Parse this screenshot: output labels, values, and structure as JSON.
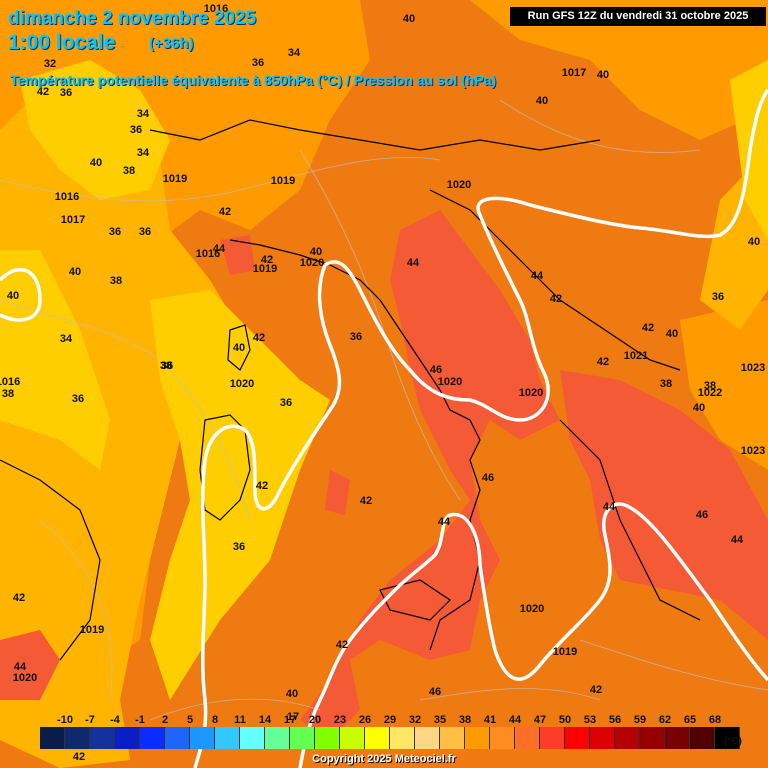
{
  "header": {
    "date": "dimanche 2 novembre 2025",
    "local_time": "1:00 locale",
    "lead": "(+36h)",
    "subtitle": "Température potentielle équivalente à 850hPa (°C) / Pression au sol (hPa)",
    "run": "Run GFS 12Z du vendredi 31 octobre 2025"
  },
  "colors": {
    "t36": "#ffce00",
    "t38": "#ffb400",
    "t41": "#ff9a00",
    "t44": "#f07a12",
    "t47": "#f35a35",
    "isobar": "#ffffff",
    "coast": "#000000"
  },
  "legend": {
    "unit": "(°C)",
    "ticks": [
      "-10",
      "-7",
      "-4",
      "-1",
      "2",
      "5",
      "8",
      "11",
      "14",
      "17",
      "20",
      "23",
      "26",
      "29",
      "32",
      "35",
      "38",
      "41",
      "44",
      "47",
      "50",
      "53",
      "56",
      "59",
      "62",
      "65",
      "68"
    ],
    "colors": [
      "#0a1d4a",
      "#0e2a6e",
      "#13329c",
      "#0a1ec8",
      "#0a2dff",
      "#1e64ff",
      "#1e96ff",
      "#32c8ff",
      "#64ffff",
      "#64ff96",
      "#64ff50",
      "#82ff00",
      "#c8ff00",
      "#ffff00",
      "#ffe664",
      "#ffd782",
      "#ffbe46",
      "#ff9a00",
      "#ff8c1e",
      "#ff6e28",
      "#ff3c28",
      "#ff0000",
      "#dc0000",
      "#b40000",
      "#960000",
      "#780000",
      "#500000",
      "#000000"
    ]
  },
  "labels": [
    {
      "t": "1016"
    },
    {
      "t": "40"
    },
    {
      "t": "32"
    },
    {
      "t": "36"
    },
    {
      "t": "34"
    },
    {
      "t": "36"
    },
    {
      "t": "42"
    },
    {
      "t": "40"
    },
    {
      "t": "1017"
    },
    {
      "t": "40"
    },
    {
      "t": "34"
    },
    {
      "t": "36"
    },
    {
      "t": "34"
    },
    {
      "t": "40"
    },
    {
      "t": "38"
    },
    {
      "t": "1019"
    },
    {
      "t": "1019"
    },
    {
      "t": "1020"
    },
    {
      "t": "1016"
    },
    {
      "t": "1017"
    },
    {
      "t": "36"
    },
    {
      "t": "36"
    },
    {
      "t": "42"
    },
    {
      "t": "44"
    },
    {
      "t": "1016"
    },
    {
      "t": "42"
    },
    {
      "t": "1019"
    },
    {
      "t": "1020"
    },
    {
      "t": "40"
    },
    {
      "t": "44"
    },
    {
      "t": "40"
    },
    {
      "t": "38"
    },
    {
      "t": "40"
    },
    {
      "t": "44"
    },
    {
      "t": "42"
    },
    {
      "t": "34"
    },
    {
      "t": "42"
    },
    {
      "t": "40"
    },
    {
      "t": "36"
    },
    {
      "t": "1021"
    },
    {
      "t": "1016"
    },
    {
      "t": "38"
    },
    {
      "t": "1020"
    },
    {
      "t": "36"
    },
    {
      "t": "36"
    },
    {
      "t": "46"
    },
    {
      "t": "1020"
    },
    {
      "t": "1020"
    },
    {
      "t": "38"
    },
    {
      "t": "38"
    },
    {
      "t": "1022"
    },
    {
      "t": "40"
    },
    {
      "t": "36"
    },
    {
      "t": "1023"
    },
    {
      "t": "42"
    },
    {
      "t": "42"
    },
    {
      "t": "46"
    },
    {
      "t": "42"
    },
    {
      "t": "44"
    },
    {
      "t": "44"
    },
    {
      "t": "46"
    },
    {
      "t": "44"
    },
    {
      "t": "36"
    },
    {
      "t": "42"
    },
    {
      "t": "1019"
    },
    {
      "t": "1020"
    },
    {
      "t": "42"
    },
    {
      "t": "1019"
    },
    {
      "t": "44"
    },
    {
      "t": "1020"
    },
    {
      "t": "46"
    },
    {
      "t": "42"
    },
    {
      "t": "40"
    },
    {
      "t": "42"
    },
    {
      "t": "42"
    },
    {
      "t": "38"
    },
    {
      "t": "1023"
    },
    {
      "t": "40"
    },
    {
      "t": "36"
    },
    {
      "t": "40"
    },
    {
      "t": "17"
    }
  ],
  "copyright": "Copyright 2025 Meteociel.fr"
}
